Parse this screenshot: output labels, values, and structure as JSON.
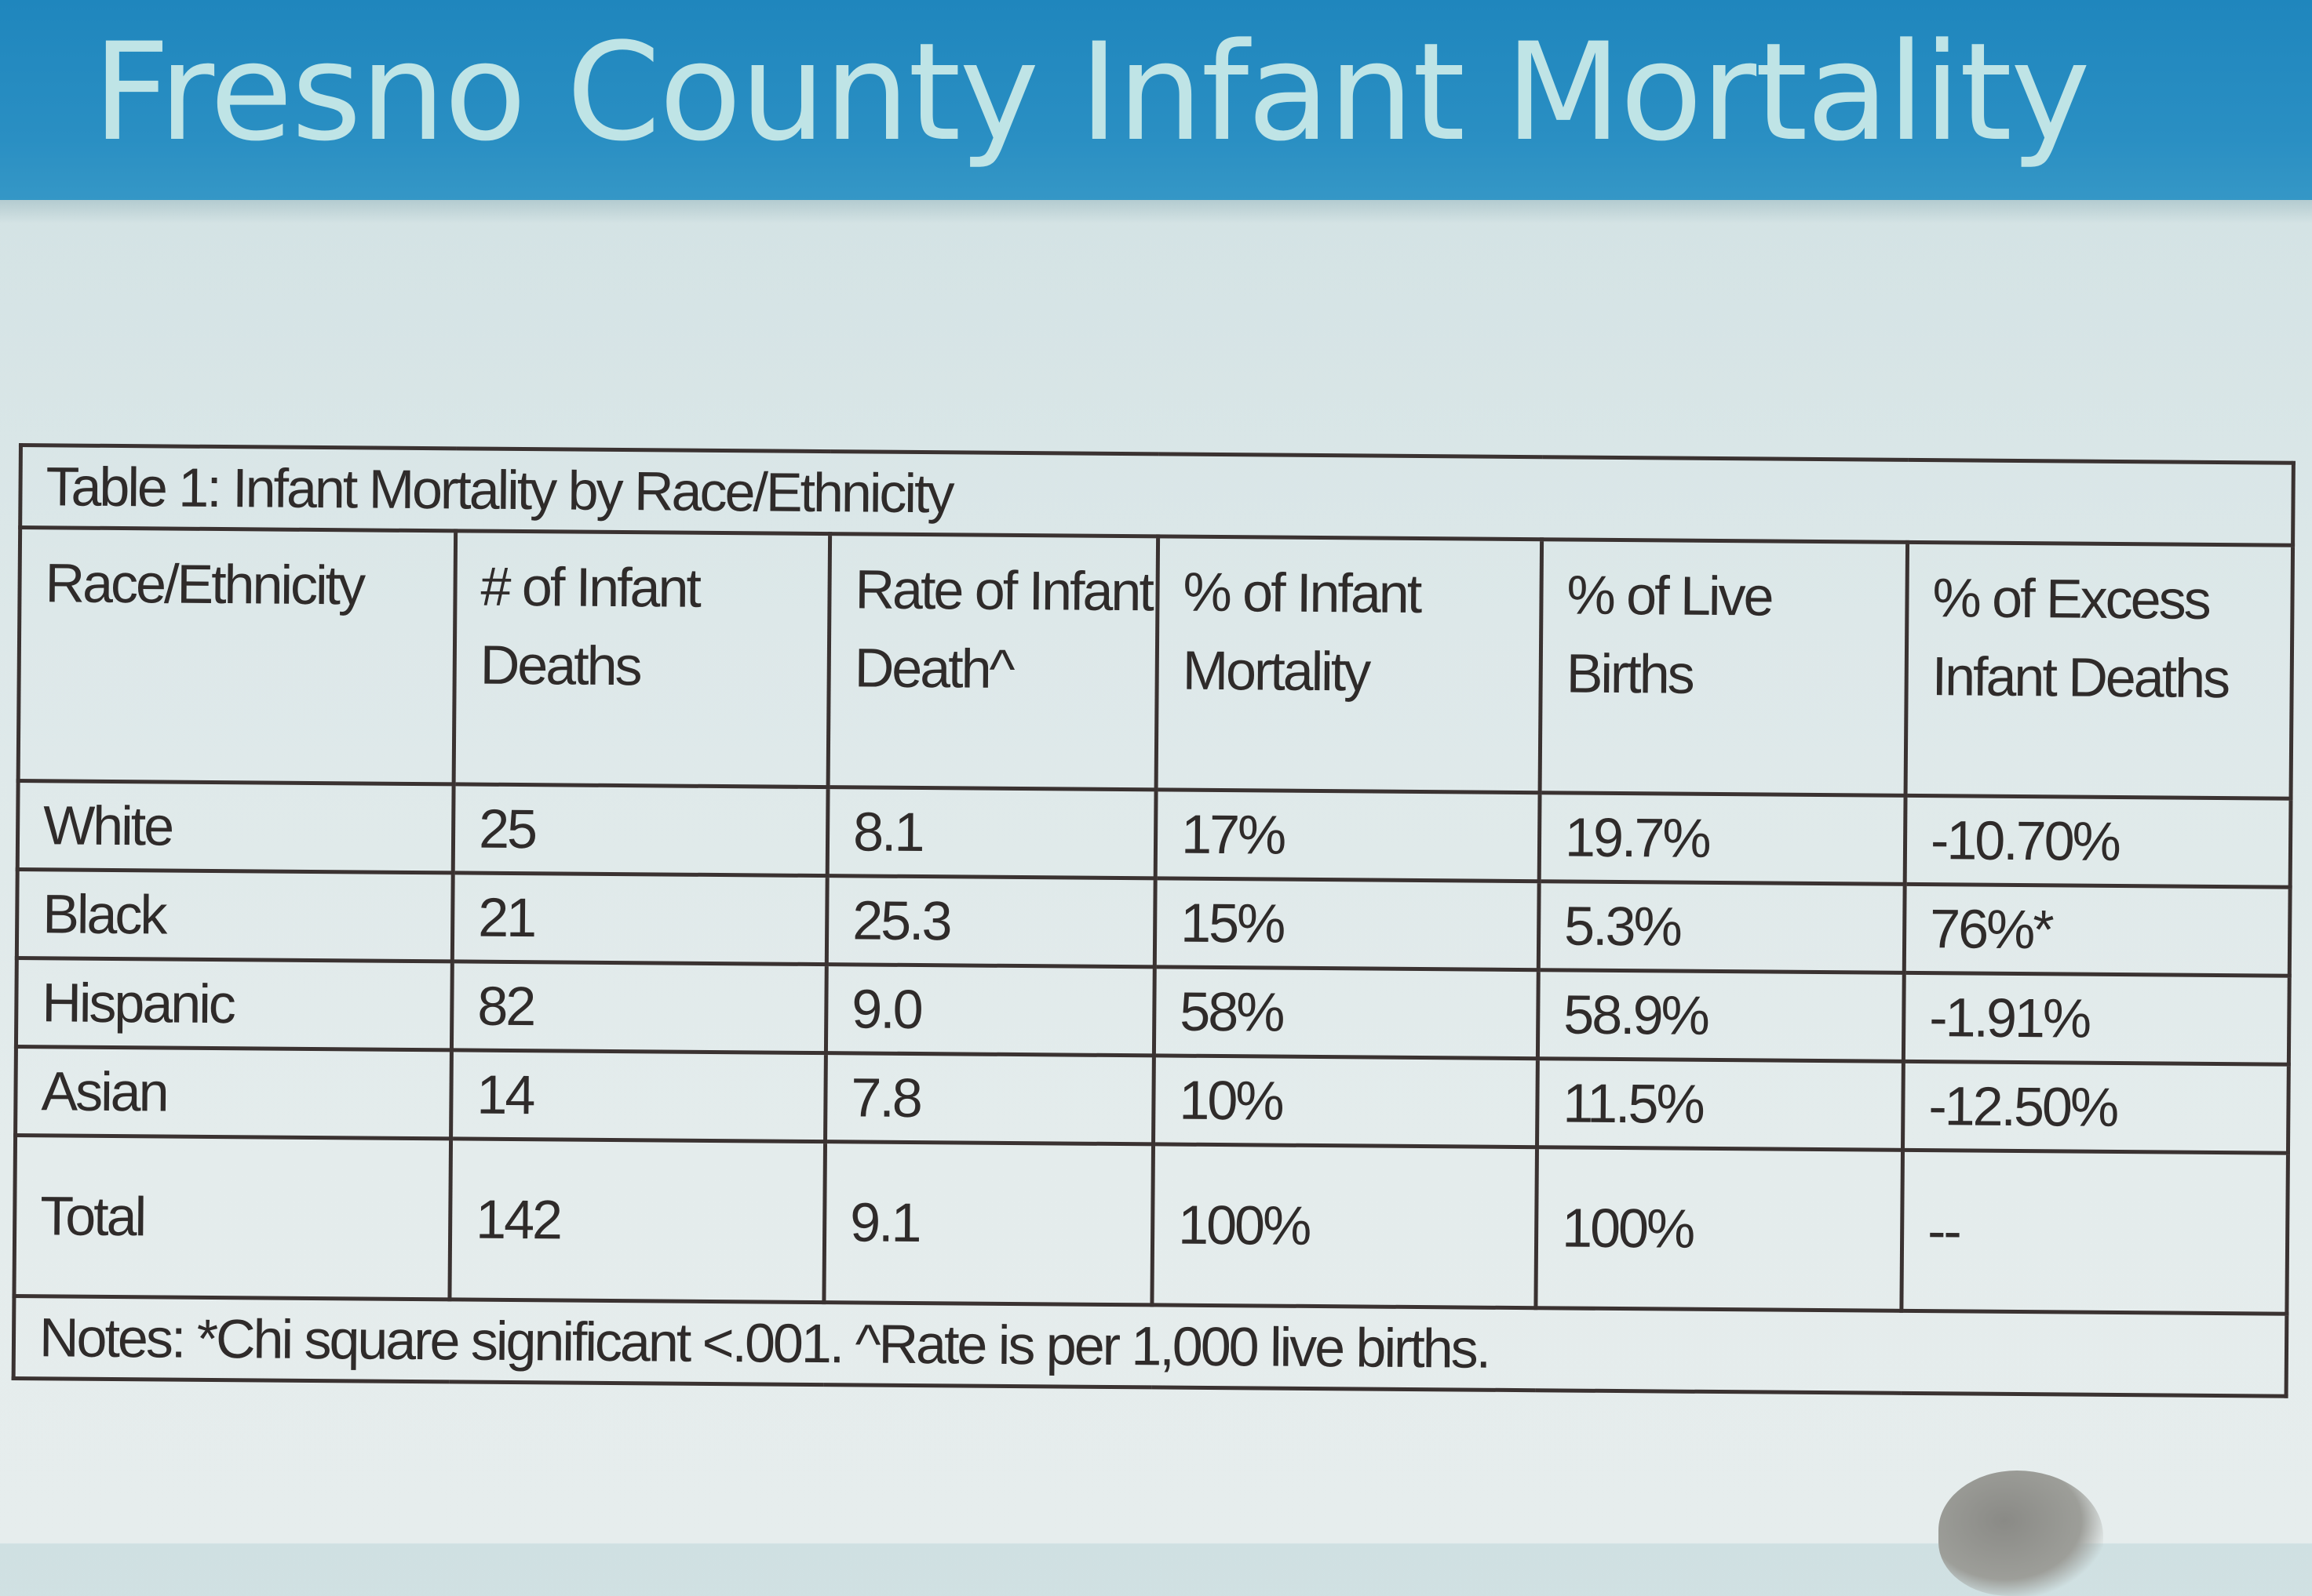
{
  "slide": {
    "title": "Fresno County Infant Mortality"
  },
  "table": {
    "caption": "Table 1: Infant Mortality by Race/Ethnicity",
    "headers": [
      "Race/Ethnicity",
      "# of Infant Deaths",
      "Rate of Infant Death^",
      "% of Infant Mortality",
      "% of Live Births",
      "% of Excess Infant Deaths"
    ],
    "rows": [
      [
        "White",
        "25",
        "8.1",
        "17%",
        "19.7%",
        "-10.70%"
      ],
      [
        "Black",
        "21",
        "25.3",
        "15%",
        "5.3%",
        "76%*"
      ],
      [
        "Hispanic",
        "82",
        "9.0",
        "58%",
        "58.9%",
        "-1.91%"
      ],
      [
        "Asian",
        "14",
        "7.8",
        "10%",
        "11.5%",
        "-12.50%"
      ],
      [
        "Total",
        "142",
        "9.1",
        "100%",
        "100%",
        "--"
      ]
    ],
    "notes": "Notes: *Chi square significant <.001. ^Rate is per 1,000 live births."
  }
}
